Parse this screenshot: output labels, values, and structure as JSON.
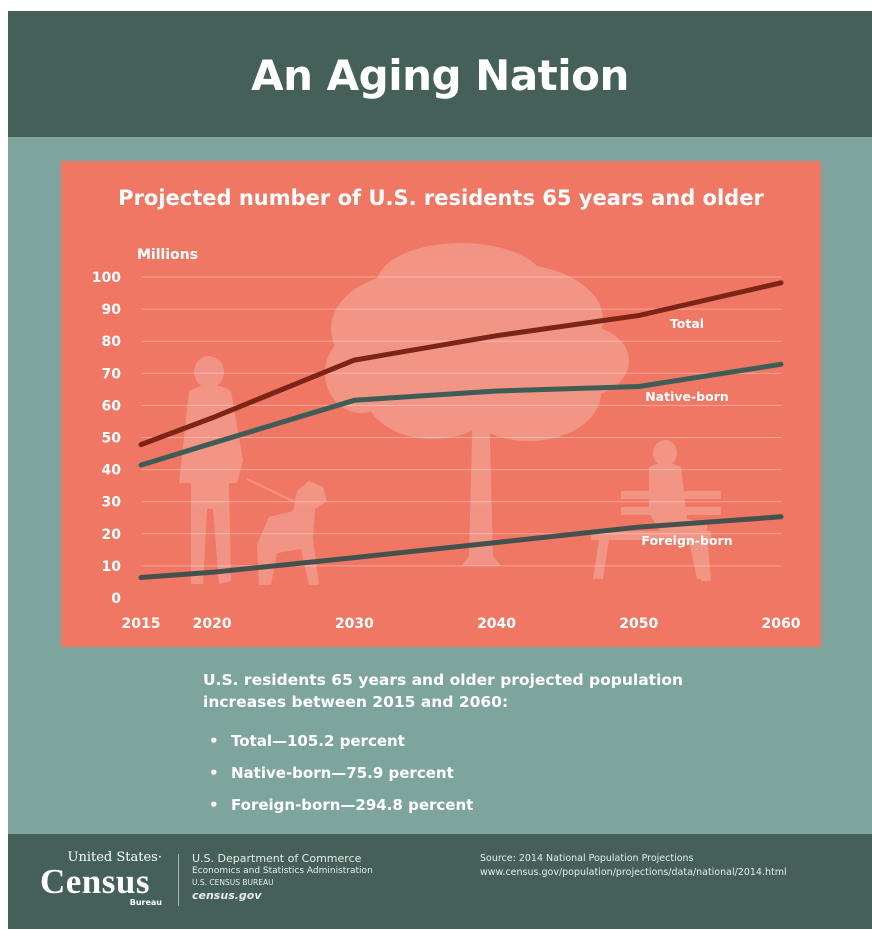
{
  "title": "An Aging Nation",
  "chart_data": {
    "type": "line",
    "title": "Projected number of U.S. residents 65 years and older",
    "ylabel": "Millions",
    "xlabel": "",
    "x": [
      2015,
      2020,
      2030,
      2040,
      2050,
      2060
    ],
    "x_ticks": [
      "2015",
      "2020",
      "2030",
      "2040",
      "2050",
      "2060"
    ],
    "y_ticks": [
      "0",
      "10",
      "20",
      "30",
      "40",
      "50",
      "60",
      "70",
      "80",
      "90",
      "100"
    ],
    "ylim": [
      0,
      100
    ],
    "grid": true,
    "series": [
      {
        "name": "Total",
        "color": "#7d2418",
        "values": [
          47.8,
          56.1,
          74.1,
          81.7,
          88.0,
          98.2
        ]
      },
      {
        "name": "Native-born",
        "color": "#3e5d57",
        "values": [
          41.4,
          48.2,
          61.6,
          64.5,
          65.9,
          72.8
        ]
      },
      {
        "name": "Foreign-born",
        "color": "#44524f",
        "values": [
          6.4,
          8.0,
          12.6,
          17.3,
          22.1,
          25.3
        ]
      }
    ],
    "background_silhouettes": [
      "walker-with-dog",
      "tree",
      "person-on-bench"
    ]
  },
  "summary": {
    "heading_line1": "U.S. residents 65 years and older projected population",
    "heading_line2": "increases between 2015 and 2060:",
    "bullet": "•",
    "items": [
      "Total—105.2 percent",
      "Native-born—75.9 percent",
      "Foreign-born—294.8 percent"
    ]
  },
  "footer": {
    "logo_top": "United States·",
    "logo_main": "Census",
    "logo_bureau": "Bureau",
    "department": "U.S. Department of Commerce",
    "administration": "Economics and Statistics Administration",
    "bureau": "U.S. CENSUS BUREAU",
    "website": "census.gov",
    "source": "Source: 2014 National Population Projections",
    "source_url": "www.census.gov/population/projections/data/national/2014.html"
  },
  "colors": {
    "header_bg": "#456058",
    "page_bg": "#7da59d",
    "chart_bg": "#ef7763"
  }
}
